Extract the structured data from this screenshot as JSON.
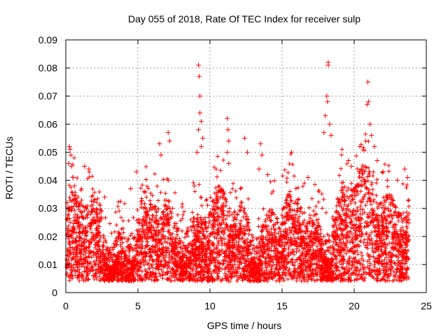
{
  "chart_data": {
    "type": "scatter",
    "title": "Day 055 of 2018, Rate Of TEC Index for receiver sulp",
    "xlabel": "GPS time / hours",
    "ylabel": "ROTI / TECUs",
    "xlim": [
      0,
      25
    ],
    "ylim": [
      0,
      0.09
    ],
    "xticks": [
      "0",
      "5",
      "10",
      "15",
      "20",
      "25"
    ],
    "yticks": [
      "0",
      "0.01",
      "0.02",
      "0.03",
      "0.04",
      "0.05",
      "0.06",
      "0.07",
      "0.08",
      "0.09"
    ],
    "grid": true,
    "marker": "+",
    "color": "#ff0000",
    "series": [
      {
        "name": "ROTI",
        "points": [
          [
            0.1,
            0.032
          ],
          [
            0.2,
            0.046
          ],
          [
            0.25,
            0.052
          ],
          [
            0.3,
            0.051
          ],
          [
            0.35,
            0.049
          ],
          [
            0.4,
            0.045
          ],
          [
            0.5,
            0.041
          ],
          [
            0.6,
            0.038
          ],
          [
            1.3,
            0.045
          ],
          [
            1.6,
            0.044
          ],
          [
            2.0,
            0.033
          ],
          [
            2.7,
            0.034
          ],
          [
            4.5,
            0.037
          ],
          [
            4.9,
            0.043
          ],
          [
            6.5,
            0.053
          ],
          [
            6.6,
            0.049
          ],
          [
            7.1,
            0.057
          ],
          [
            7.2,
            0.054
          ],
          [
            7.1,
            0.04
          ],
          [
            8.9,
            0.038
          ],
          [
            9.1,
            0.05
          ],
          [
            9.2,
            0.081
          ],
          [
            9.25,
            0.077
          ],
          [
            9.3,
            0.07
          ],
          [
            9.3,
            0.064
          ],
          [
            9.4,
            0.061
          ],
          [
            9.2,
            0.058
          ],
          [
            9.5,
            0.055
          ],
          [
            9.4,
            0.052
          ],
          [
            11.2,
            0.062
          ],
          [
            11.25,
            0.058
          ],
          [
            11.3,
            0.054
          ],
          [
            11.2,
            0.05
          ],
          [
            11.3,
            0.046
          ],
          [
            12.4,
            0.055
          ],
          [
            12.6,
            0.05
          ],
          [
            13.5,
            0.053
          ],
          [
            13.6,
            0.049
          ],
          [
            13.4,
            0.044
          ],
          [
            14.0,
            0.042
          ],
          [
            16.8,
            0.041
          ],
          [
            17.9,
            0.057
          ],
          [
            18.0,
            0.063
          ],
          [
            18.1,
            0.07
          ],
          [
            18.15,
            0.068
          ],
          [
            18.2,
            0.082
          ],
          [
            18.2,
            0.081
          ],
          [
            18.3,
            0.06
          ],
          [
            18.4,
            0.056
          ],
          [
            19.6,
            0.047
          ],
          [
            19.8,
            0.045
          ],
          [
            20.5,
            0.044
          ],
          [
            20.8,
            0.054
          ],
          [
            20.9,
            0.067
          ],
          [
            20.95,
            0.075
          ],
          [
            21.0,
            0.068
          ],
          [
            21.1,
            0.06
          ],
          [
            21.2,
            0.056
          ],
          [
            21.4,
            0.052
          ],
          [
            21.6,
            0.047
          ],
          [
            22.0,
            0.043
          ],
          [
            22.3,
            0.04
          ],
          [
            23.0,
            0.04
          ],
          [
            23.5,
            0.044
          ],
          [
            23.7,
            0.041
          ]
        ]
      }
    ]
  }
}
